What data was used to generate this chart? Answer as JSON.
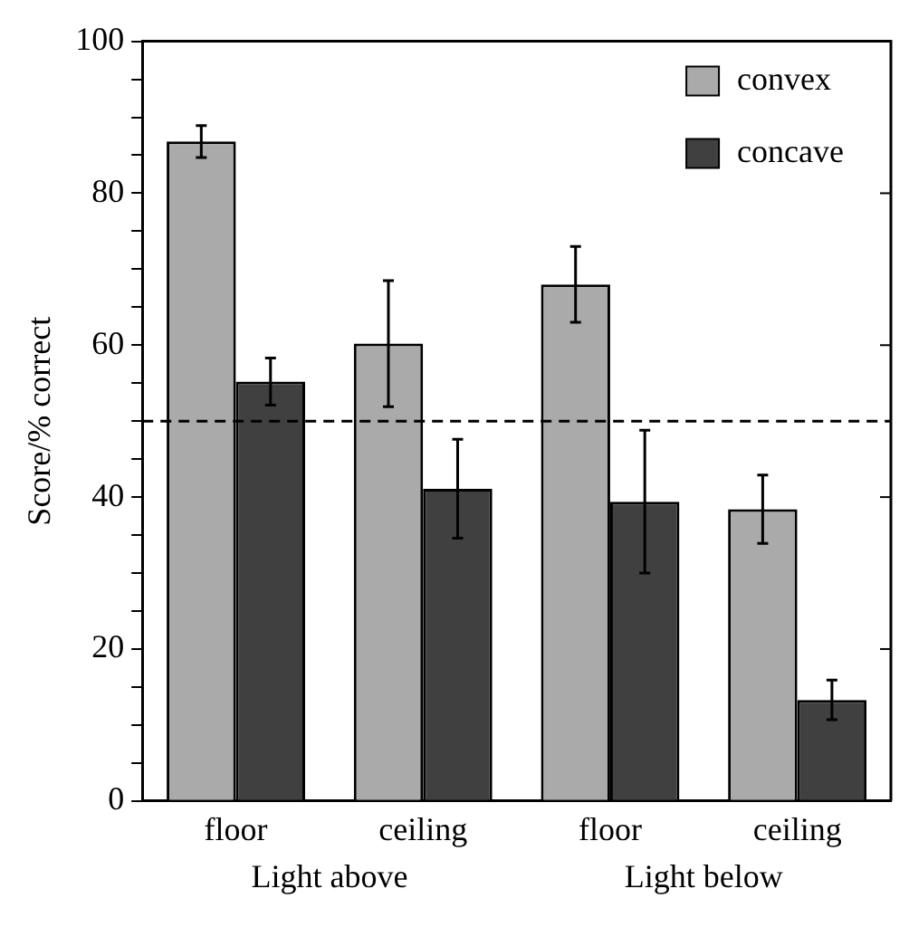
{
  "chart_data": {
    "type": "bar",
    "ylabel": "Score/% correct",
    "categories": [
      "floor",
      "ceiling",
      "floor",
      "ceiling"
    ],
    "annotations": [
      "Light above",
      "Light below"
    ],
    "series": [
      {
        "name": "convex",
        "color": "#aaaaaa",
        "values": [
          86.8,
          60.2,
          68.0,
          38.4
        ],
        "errors": [
          2.1,
          8.3,
          5.0,
          4.5
        ]
      },
      {
        "name": "concave",
        "color": "#404040",
        "values": [
          55.2,
          41.1,
          39.4,
          13.3
        ],
        "errors": [
          3.1,
          6.5,
          9.4,
          2.6
        ]
      }
    ],
    "ylim": [
      0,
      100
    ],
    "yticks": [
      0,
      {
        "value": 5,
        "label": null
      },
      {
        "value": 10,
        "label": null
      },
      {
        "value": 15,
        "label": null
      },
      20,
      {
        "value": 25,
        "label": null
      },
      {
        "value": 30,
        "label": null
      },
      {
        "value": 35,
        "label": null
      },
      40,
      {
        "value": 45,
        "label": null
      },
      {
        "value": 50,
        "label": null
      },
      {
        "value": 55,
        "label": null
      },
      60,
      {
        "value": 65,
        "label": null
      },
      {
        "value": 70,
        "label": null
      },
      {
        "value": 75,
        "label": null
      },
      80,
      {
        "value": 85,
        "label": null
      },
      {
        "value": 90,
        "label": null
      },
      {
        "value": 95,
        "label": null
      },
      100
    ],
    "ref_lines": [
      {
        "axis": "y",
        "value": 50,
        "color": "#000000",
        "line_style": "dashed"
      }
    ],
    "legend": "top right",
    "grid": false
  }
}
